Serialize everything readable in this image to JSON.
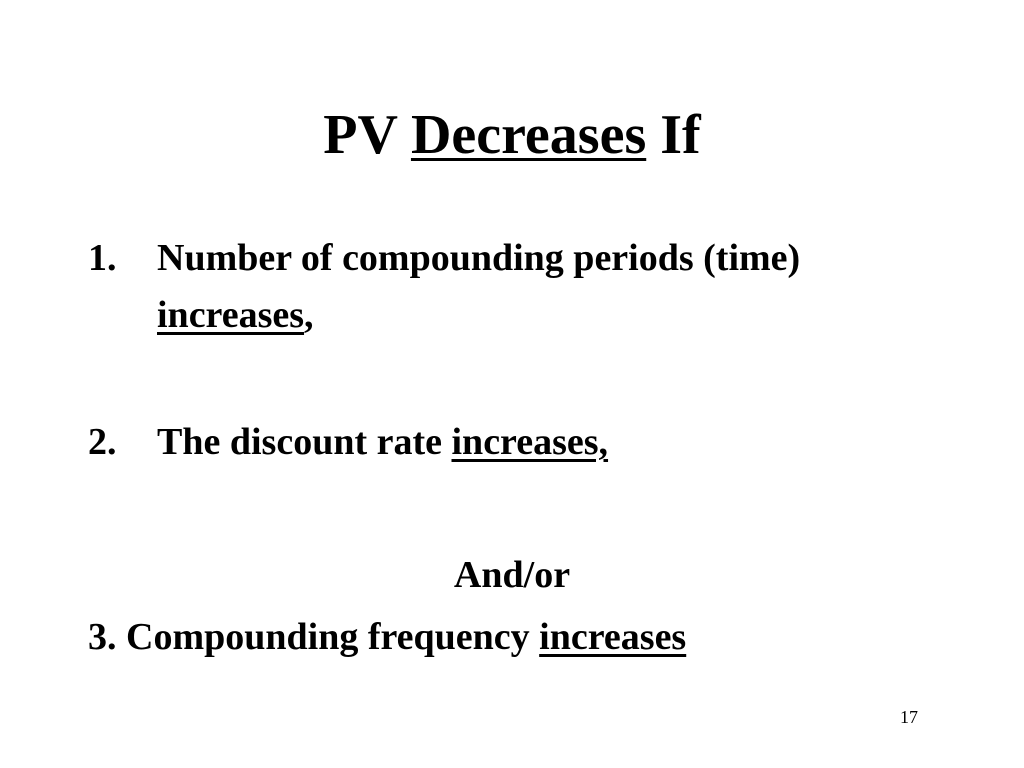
{
  "slide": {
    "title": {
      "prefix": "PV",
      "emphasis": "Decreases",
      "suffix": "If"
    },
    "items": [
      {
        "number": "1.",
        "text": "Number of compounding periods (time)",
        "emphasis": "increases",
        "suffix": ","
      },
      {
        "number": "2.",
        "text": "The discount rate",
        "emphasis": "increases,"
      }
    ],
    "connector": "And/or",
    "last_item": {
      "text": "3. Compounding frequency",
      "emphasis": "increases"
    },
    "page_number": 17
  }
}
